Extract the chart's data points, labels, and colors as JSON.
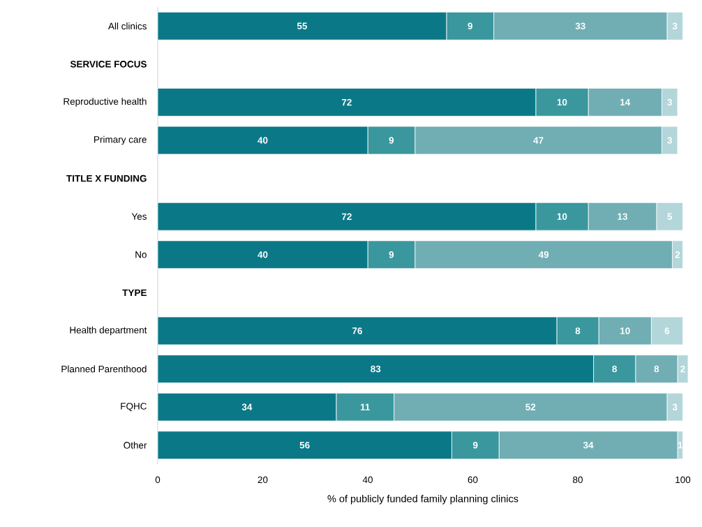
{
  "chart_data": {
    "type": "bar",
    "orientation": "horizontal",
    "stacked": true,
    "data_labels": true,
    "grid": false,
    "xlabel": "% of publicly funded family planning clinics",
    "categories": [
      "All clinics",
      "SERVICE FOCUS",
      "Reproductive health",
      "Primary care",
      "TITLE X FUNDING",
      "Yes",
      "No",
      "TYPE",
      "Health department",
      "Planned Parenthood",
      "FQHC",
      "Other"
    ],
    "xlim": [
      0,
      101
    ],
    "xticks": [
      0,
      20,
      40,
      60,
      80,
      100
    ],
    "series": [
      {
        "color": "#0b7887",
        "values": [
          55,
          null,
          72,
          40,
          null,
          72,
          40,
          null,
          76,
          83,
          34,
          56
        ]
      },
      {
        "color": "#3a979e",
        "values": [
          9,
          null,
          10,
          9,
          null,
          10,
          9,
          null,
          8,
          8,
          11,
          9
        ]
      },
      {
        "color": "#70aeb4",
        "values": [
          33,
          null,
          14,
          47,
          null,
          13,
          49,
          null,
          10,
          8,
          52,
          34
        ]
      },
      {
        "color": "#b3d6da",
        "values": [
          3,
          null,
          3,
          3,
          null,
          5,
          2,
          null,
          6,
          2,
          3,
          1
        ]
      }
    ]
  }
}
